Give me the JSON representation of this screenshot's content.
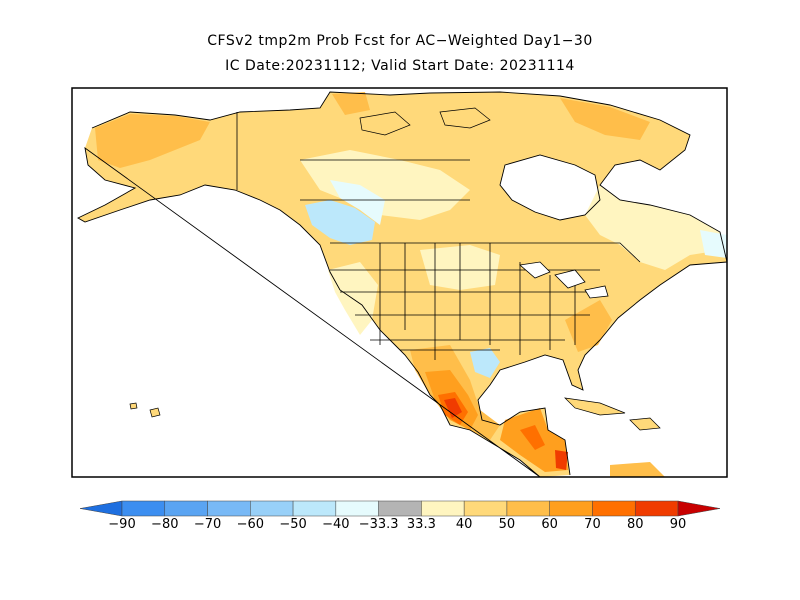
{
  "title_line1": "CFSv2 tmp2m Prob Fcst for AC−Weighted Day1−30",
  "title_line2": "IC Date:20231112; Valid Start Date: 20231114",
  "colorbar": {
    "labels": [
      "−90",
      "−80",
      "−70",
      "−60",
      "−50",
      "−40",
      "−33.3",
      "33.3",
      "40",
      "50",
      "60",
      "70",
      "80",
      "90"
    ],
    "colors": [
      "#1e6fe0",
      "#3c8ef0",
      "#5aa4f2",
      "#78b9f6",
      "#98d0f8",
      "#bce8fb",
      "#e6fbfd",
      "#b4b4b4",
      "#fff5c0",
      "#ffd97a",
      "#ffbe4a",
      "#ff9f1e",
      "#ff7000",
      "#f03c00",
      "#c80000"
    ]
  },
  "legend_colors": {
    "below_40": "#bce8fb",
    "below_33": "#e6fbfd",
    "above_33": "#fff5c0",
    "above_40": "#ffd97a",
    "above_50": "#ffbe4a",
    "above_60": "#ff9f1e",
    "above_70": "#ff7000",
    "above_80": "#f03c00"
  }
}
